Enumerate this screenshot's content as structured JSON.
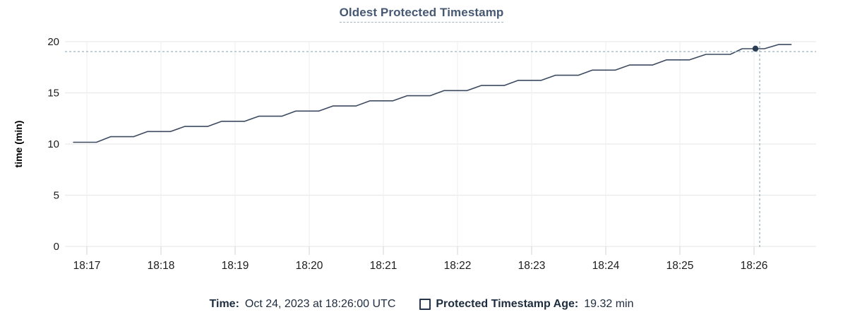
{
  "title": "Oldest Protected Timestamp",
  "legend": {
    "time_label": "Time:",
    "time_value": "Oct 24, 2023 at 18:26:00 UTC",
    "series_label": "Protected Timestamp Age:",
    "series_value": "19.32 min"
  },
  "colors": {
    "line": "#3c4a60",
    "dot": "#2b3c55",
    "crosshair": "#a5bac5",
    "grid_h": "#e9eaec",
    "grid_v": "#eef0f1",
    "tick": "#d8dadc",
    "axis_text": "#1c1c1c",
    "title_text": "#475872",
    "legend_text": "#1e2c3f"
  },
  "chart_data": {
    "type": "line",
    "title": "Oldest Protected Timestamp",
    "xlabel": "",
    "ylabel": "time (min)",
    "ylim": [
      0,
      20
    ],
    "grid": true,
    "legend_position": "bottom",
    "x_unit": "minutes after 18:00 UTC, Oct 24 2023",
    "x_range": [
      16.82,
      26.86
    ],
    "y_ticks": [
      {
        "v": 0,
        "label": "0"
      },
      {
        "v": 5,
        "label": "5"
      },
      {
        "v": 10,
        "label": "10"
      },
      {
        "v": 15,
        "label": "15"
      },
      {
        "v": 20,
        "label": "20"
      }
    ],
    "x_ticks": [
      {
        "t": 17,
        "label": "18:17"
      },
      {
        "t": 18,
        "label": "18:18"
      },
      {
        "t": 19,
        "label": "18:19"
      },
      {
        "t": 20,
        "label": "18:20"
      },
      {
        "t": 21,
        "label": "18:21"
      },
      {
        "t": 22,
        "label": "18:22"
      },
      {
        "t": 23,
        "label": "18:23"
      },
      {
        "t": 24,
        "label": "18:24"
      },
      {
        "t": 25,
        "label": "18:25"
      },
      {
        "t": 26,
        "label": "18:26"
      }
    ],
    "series": [
      {
        "name": "Protected Timestamp Age",
        "style": "staircase",
        "points": [
          [
            16.82,
            10.17
          ],
          [
            17.13,
            10.17
          ],
          [
            17.32,
            10.72
          ],
          [
            17.63,
            10.72
          ],
          [
            17.82,
            11.22
          ],
          [
            18.13,
            11.22
          ],
          [
            18.32,
            11.72
          ],
          [
            18.63,
            11.72
          ],
          [
            18.82,
            12.22
          ],
          [
            19.13,
            12.22
          ],
          [
            19.32,
            12.72
          ],
          [
            19.63,
            12.72
          ],
          [
            19.82,
            13.22
          ],
          [
            20.13,
            13.22
          ],
          [
            20.32,
            13.72
          ],
          [
            20.63,
            13.72
          ],
          [
            20.82,
            14.22
          ],
          [
            21.13,
            14.22
          ],
          [
            21.32,
            14.72
          ],
          [
            21.63,
            14.72
          ],
          [
            21.82,
            15.22
          ],
          [
            22.13,
            15.22
          ],
          [
            22.32,
            15.72
          ],
          [
            22.63,
            15.72
          ],
          [
            22.82,
            16.22
          ],
          [
            23.13,
            16.22
          ],
          [
            23.32,
            16.72
          ],
          [
            23.63,
            16.72
          ],
          [
            23.82,
            17.22
          ],
          [
            24.13,
            17.22
          ],
          [
            24.32,
            17.72
          ],
          [
            24.63,
            17.72
          ],
          [
            24.82,
            18.22
          ],
          [
            25.13,
            18.22
          ],
          [
            25.35,
            18.76
          ],
          [
            25.68,
            18.76
          ],
          [
            25.84,
            19.31
          ],
          [
            26.14,
            19.31
          ],
          [
            26.33,
            19.72
          ],
          [
            26.5,
            19.72
          ]
        ]
      }
    ],
    "hover_point": {
      "t": 26.019,
      "v": 19.32,
      "time_label": "Oct 24, 2023 at 18:26:00 UTC",
      "value_label": "19.32 min"
    },
    "cursor": {
      "t": 26.076,
      "v": 19.03
    }
  }
}
